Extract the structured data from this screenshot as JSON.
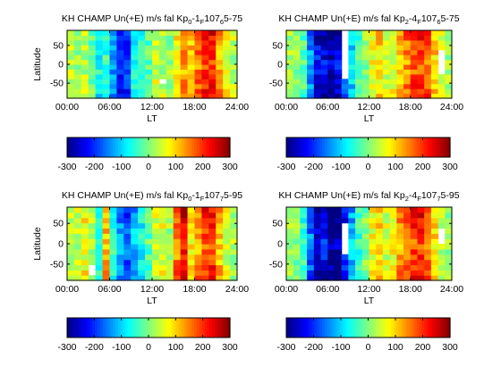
{
  "chart_data": [
    {
      "type": "heatmap",
      "title_parts": [
        {
          "text": "KH CHAMP Un(+E) m/s fal Kp",
          "sub": false
        },
        {
          "text": "0",
          "sub": true
        },
        {
          "text": "-1",
          "sub": false
        },
        {
          "text": "F",
          "sub": true
        },
        {
          "text": "107",
          "sub": false
        },
        {
          "text": "6",
          "sub": true
        },
        {
          "text": "5-75",
          "sub": false
        }
      ],
      "xlabel": "LT",
      "ylabel": "Latitude",
      "xlim": [
        0,
        24
      ],
      "ylim": [
        -90,
        90
      ],
      "xticks": [
        "00:00",
        "06:00",
        "12:00",
        "18:00",
        "24:00"
      ],
      "yticks": [
        "-50",
        "0",
        "50"
      ],
      "colorbar_ticks": [
        "-300",
        "-200",
        "-100",
        "0",
        "100",
        "200",
        "300"
      ],
      "clim": [
        -300,
        300
      ],
      "colormap": "jet",
      "lt_profile": [
        40,
        20,
        30,
        -10,
        -60,
        -40,
        -120,
        -180,
        -160,
        -60,
        -40,
        -20,
        40,
        30,
        10,
        60,
        120,
        90,
        140,
        170,
        180,
        110,
        60,
        30
      ],
      "seed": 11,
      "blank_cells": [
        [
          13,
          3
        ]
      ]
    },
    {
      "type": "heatmap",
      "title_parts": [
        {
          "text": "KH CHAMP Un(+E) m/s fal Kp",
          "sub": false
        },
        {
          "text": "2",
          "sub": true
        },
        {
          "text": "-4",
          "sub": false
        },
        {
          "text": "F",
          "sub": true
        },
        {
          "text": "107",
          "sub": false
        },
        {
          "text": "6",
          "sub": true
        },
        {
          "text": "5-75",
          "sub": false
        }
      ],
      "xlabel": "LT",
      "ylabel": "",
      "xlim": [
        0,
        24
      ],
      "ylim": [
        -90,
        90
      ],
      "xticks": [
        "00:00",
        "06:00",
        "12:00",
        "18:00",
        "24:00"
      ],
      "yticks": [
        "-50",
        "0",
        "50"
      ],
      "colorbar_ticks": [
        "-300",
        "-200",
        "-100",
        "0",
        "100",
        "200",
        "300"
      ],
      "clim": [
        -300,
        300
      ],
      "colormap": "jet",
      "lt_profile": [
        20,
        10,
        -20,
        -120,
        -200,
        -220,
        -240,
        -200,
        -150,
        -80,
        -30,
        10,
        60,
        80,
        40,
        60,
        100,
        130,
        160,
        170,
        150,
        90,
        40,
        20
      ],
      "seed": 23,
      "blank_cells": [
        [
          8,
          13
        ],
        [
          8,
          12
        ],
        [
          8,
          11
        ],
        [
          8,
          10
        ],
        [
          8,
          9
        ],
        [
          8,
          8
        ],
        [
          8,
          7
        ],
        [
          8,
          6
        ],
        [
          8,
          5
        ],
        [
          8,
          4
        ],
        [
          22,
          9
        ],
        [
          22,
          8
        ],
        [
          22,
          7
        ],
        [
          22,
          6
        ],
        [
          22,
          5
        ]
      ]
    },
    {
      "type": "heatmap",
      "title_parts": [
        {
          "text": "KH CHAMP Un(+E) m/s fal Kp",
          "sub": false
        },
        {
          "text": "0",
          "sub": true
        },
        {
          "text": "-1",
          "sub": false
        },
        {
          "text": "F",
          "sub": true
        },
        {
          "text": "107",
          "sub": false
        },
        {
          "text": "7",
          "sub": true
        },
        {
          "text": "5-95",
          "sub": false
        }
      ],
      "xlabel": "LT",
      "ylabel": "Latitude",
      "xlim": [
        0,
        24
      ],
      "ylim": [
        -90,
        90
      ],
      "xticks": [
        "00:00",
        "06:00",
        "12:00",
        "18:00",
        "24:00"
      ],
      "yticks": [
        "-50",
        "0",
        "50"
      ],
      "colorbar_ticks": [
        "-300",
        "-200",
        "-100",
        "0",
        "100",
        "200",
        "300"
      ],
      "clim": [
        -300,
        300
      ],
      "colormap": "jet",
      "lt_profile": [
        40,
        30,
        60,
        20,
        -40,
        100,
        -40,
        -120,
        -160,
        -100,
        -60,
        -20,
        40,
        50,
        20,
        130,
        200,
        80,
        120,
        160,
        170,
        100,
        40,
        20
      ],
      "seed": 37,
      "blank_cells": [
        [
          3,
          2
        ],
        [
          3,
          1
        ]
      ]
    },
    {
      "type": "heatmap",
      "title_parts": [
        {
          "text": "KH CHAMP Un(+E) m/s fal Kp",
          "sub": false
        },
        {
          "text": "2",
          "sub": true
        },
        {
          "text": "-4",
          "sub": false
        },
        {
          "text": "F",
          "sub": true
        },
        {
          "text": "107",
          "sub": false
        },
        {
          "text": "7",
          "sub": true
        },
        {
          "text": "5-95",
          "sub": false
        }
      ],
      "xlabel": "LT",
      "ylabel": "",
      "xlim": [
        0,
        24
      ],
      "ylim": [
        -90,
        90
      ],
      "xticks": [
        "00:00",
        "06:00",
        "12:00",
        "18:00",
        "24:00"
      ],
      "yticks": [
        "-50",
        "0",
        "50"
      ],
      "colorbar_ticks": [
        "-300",
        "-200",
        "-100",
        "0",
        "100",
        "200",
        "300"
      ],
      "clim": [
        -300,
        300
      ],
      "colormap": "jet",
      "lt_profile": [
        10,
        0,
        -40,
        -140,
        -220,
        -200,
        -240,
        -260,
        -180,
        -100,
        -40,
        0,
        60,
        80,
        40,
        70,
        120,
        150,
        170,
        180,
        140,
        80,
        30,
        10
      ],
      "seed": 51,
      "blank_cells": [
        [
          8,
          10
        ],
        [
          8,
          9
        ],
        [
          8,
          8
        ],
        [
          8,
          7
        ],
        [
          8,
          6
        ],
        [
          8,
          5
        ],
        [
          22,
          9
        ],
        [
          22,
          8
        ],
        [
          22,
          7
        ]
      ]
    }
  ]
}
